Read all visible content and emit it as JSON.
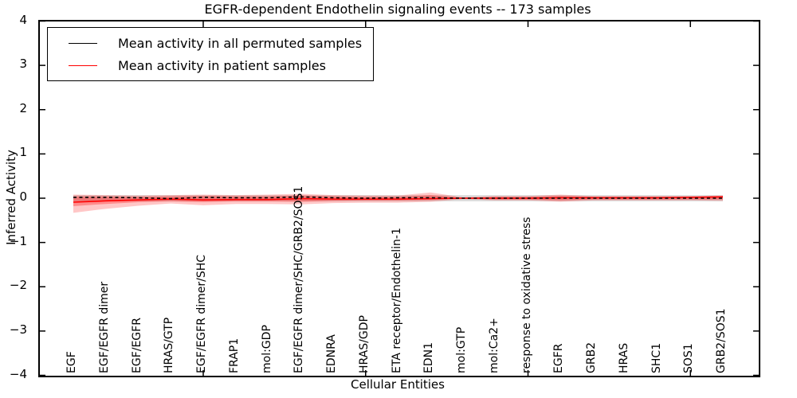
{
  "figure": {
    "title": "EGFR-dependent Endothelin signaling events -- 173 samples"
  },
  "chart_data": {
    "type": "line",
    "title": "EGFR-dependent Endothelin signaling events -- 173 samples",
    "xlabel": "Cellular Entities",
    "ylabel": "Inferred Activity",
    "ylim": [
      -4,
      4
    ],
    "yticks": [
      4,
      3,
      2,
      1,
      0,
      -1,
      -2,
      -3,
      -4
    ],
    "grid": false,
    "legend_position": "upper left",
    "categories": [
      "EGF",
      "EGF/EGFR dimer",
      "EGF/EGFR",
      "HRAS/GTP",
      "EGF/EGFR dimer/SHC",
      "FRAP1",
      "mol:GDP",
      "EGF/EGFR dimer/SHC/GRB2/SOS1",
      "EDNRA",
      "HRAS/GDP",
      "ETA receptor/Endothelin-1",
      "EDN1",
      "mol:GTP",
      "mol:Ca2+",
      "response to oxidative stress",
      "EGFR",
      "GRB2",
      "HRAS",
      "SHC1",
      "SOS1",
      "GRB2/SOS1"
    ],
    "xtick_mark_indices": [
      4,
      9,
      14,
      19
    ],
    "legend": [
      {
        "label": "Mean activity in all permuted samples",
        "color": "#000000",
        "style": "solid"
      },
      {
        "label": "Mean activity in patient samples",
        "color": "#ff0000",
        "style": "solid"
      }
    ],
    "series": [
      {
        "name": "Mean activity in all permuted samples",
        "color": "#000000",
        "dashed": true,
        "values": [
          0.02,
          0.02,
          0.01,
          -0.01,
          0.02,
          0.01,
          0.01,
          0.03,
          0.01,
          0.0,
          0.01,
          0.01,
          0.0,
          0.0,
          0.0,
          0.0,
          0.0,
          0.0,
          0.0,
          0.0,
          0.0
        ]
      },
      {
        "name": "Mean activity in patient samples",
        "color": "#ff0000",
        "dashed": false,
        "values": [
          -0.09,
          -0.06,
          -0.04,
          -0.02,
          -0.04,
          -0.03,
          -0.03,
          -0.01,
          -0.02,
          -0.02,
          -0.02,
          -0.01,
          0.0,
          0.0,
          0.0,
          0.01,
          0.01,
          0.01,
          0.01,
          0.02,
          0.03
        ]
      }
    ],
    "bands": [
      {
        "name": "permuted-samples-range",
        "color": "rgba(0,0,0,0.14)",
        "low": [
          -0.07,
          -0.07,
          -0.07,
          -0.07,
          -0.07,
          -0.07,
          -0.07,
          -0.07,
          -0.07,
          -0.07,
          -0.07,
          -0.07,
          -0.07,
          -0.07,
          -0.07,
          -0.07,
          -0.07,
          -0.07,
          -0.07,
          -0.07,
          -0.07
        ],
        "high": [
          0.07,
          0.07,
          0.07,
          0.07,
          0.07,
          0.07,
          0.07,
          0.07,
          0.07,
          0.07,
          0.07,
          0.07,
          0.07,
          0.07,
          0.07,
          0.07,
          0.07,
          0.07,
          0.07,
          0.07,
          0.07
        ]
      },
      {
        "name": "patient-samples-outer-band",
        "color": "rgba(255,0,0,0.22)",
        "low": [
          -0.33,
          -0.24,
          -0.17,
          -0.12,
          -0.16,
          -0.13,
          -0.13,
          -0.14,
          -0.11,
          -0.1,
          -0.1,
          -0.08,
          -0.02,
          -0.05,
          -0.05,
          -0.08,
          -0.05,
          -0.05,
          -0.05,
          -0.05,
          -0.06
        ],
        "high": [
          0.08,
          0.07,
          0.06,
          0.07,
          0.08,
          0.07,
          0.08,
          0.1,
          0.07,
          0.06,
          0.06,
          0.13,
          0.02,
          0.05,
          0.05,
          0.08,
          0.05,
          0.05,
          0.05,
          0.05,
          0.06
        ]
      },
      {
        "name": "patient-samples-inner-band",
        "color": "rgba(255,0,0,0.30)",
        "low": [
          -0.18,
          -0.13,
          -0.09,
          -0.07,
          -0.09,
          -0.07,
          -0.07,
          -0.08,
          -0.06,
          -0.05,
          -0.05,
          -0.04,
          -0.01,
          -0.03,
          -0.03,
          -0.05,
          -0.03,
          -0.03,
          -0.03,
          -0.03,
          -0.03
        ],
        "high": [
          0.04,
          0.04,
          0.03,
          0.04,
          0.05,
          0.04,
          0.04,
          0.06,
          0.04,
          0.03,
          0.03,
          0.07,
          0.01,
          0.03,
          0.03,
          0.05,
          0.03,
          0.03,
          0.03,
          0.03,
          0.03
        ]
      }
    ]
  }
}
